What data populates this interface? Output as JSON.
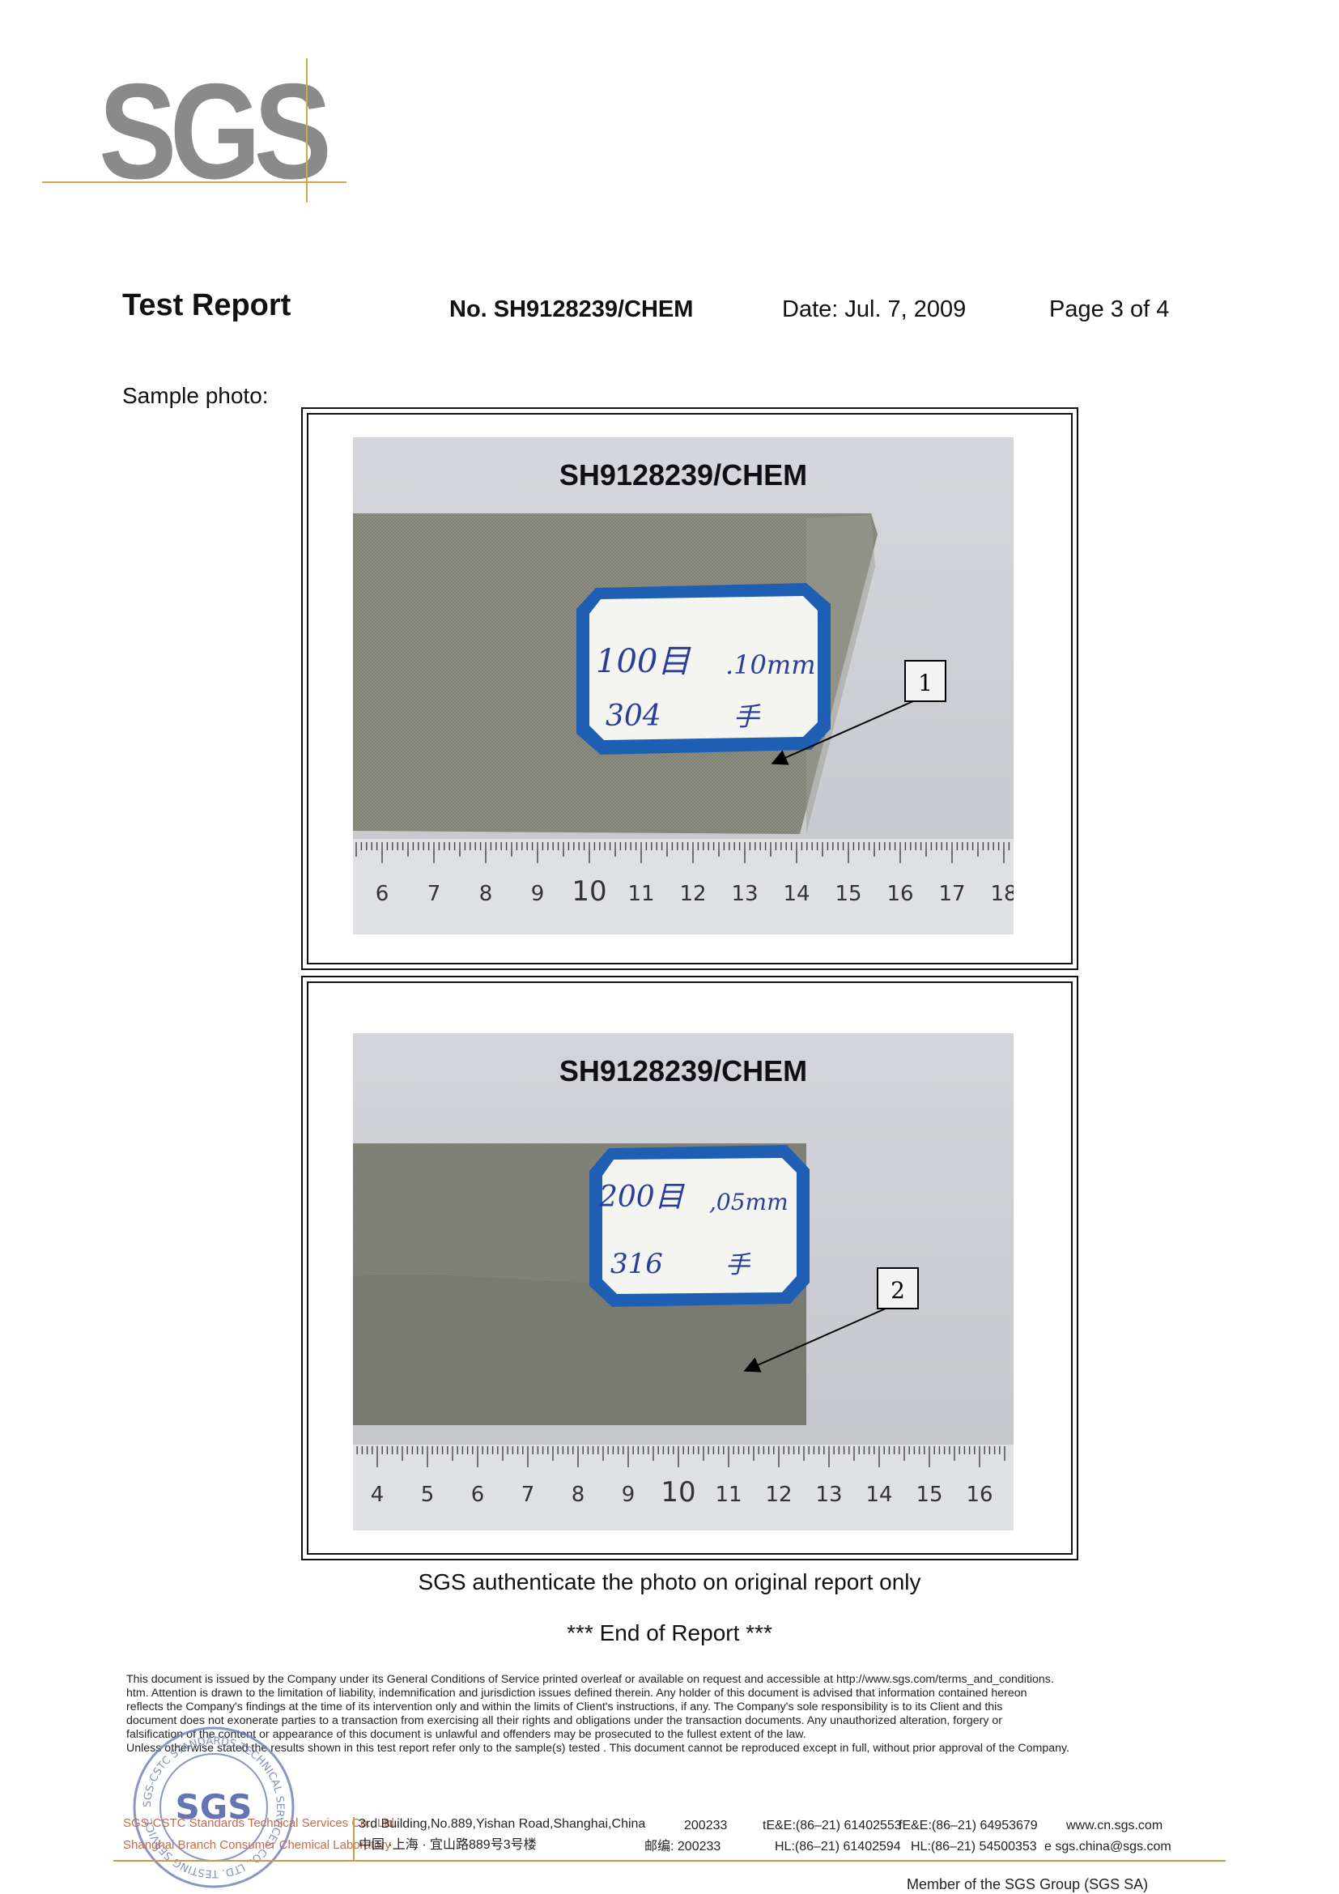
{
  "logo": {
    "text": "SGS",
    "color": "#8a8a8a",
    "accent": "#d4a84a"
  },
  "header": {
    "title": "Test Report",
    "report_no": "No. SH9128239/CHEM",
    "date": "Date: Jul. 7, 2009",
    "page": "Page 3 of 4"
  },
  "sample_label": "Sample photo:",
  "photos": [
    {
      "id_text": "SH9128239/CHEM",
      "tag_line1_left": "100目",
      "tag_line1_right": ".10mm",
      "tag_line2_left": "304",
      "tag_line2_right": "手",
      "callout": "1",
      "ruler_numbers": [
        "6",
        "7",
        "8",
        "9",
        "10",
        "11",
        "12",
        "13",
        "14",
        "15",
        "16",
        "17",
        "18"
      ]
    },
    {
      "id_text": "SH9128239/CHEM",
      "tag_line1_left": "200目",
      "tag_line1_right": ",05mm",
      "tag_line2_left": "316",
      "tag_line2_right": "手",
      "callout": "2",
      "ruler_numbers": [
        "4",
        "5",
        "6",
        "7",
        "8",
        "9",
        "10",
        "11",
        "12",
        "13",
        "14",
        "15",
        "16"
      ]
    }
  ],
  "caption": "SGS authenticate the photo on original report only",
  "end_text": "*** End of Report ***",
  "footer": {
    "disclaimer_lines": [
      "This document is issued by the Company under its General Conditions of Service printed overleaf or available on request and accessible at http://www.sgs.com/terms_and_conditions.",
      "htm. Attention is drawn to the limitation of liability, indemnification and jurisdiction issues defined therein. Any holder of this document is advised that information contained hereon",
      "reflects the Company's findings at the time of its intervention only and within the limits of Client's instructions, if any. The Company's sole responsibility is to its Client and this",
      "document does not exonerate parties to a transaction from exercising all their rights and obligations under the transaction documents. Any unauthorized alteration, forgery or",
      "falsification of the content or appearance of this document is unlawful and offenders may be prosecuted to the fullest extent of the law.",
      "Unless otherwise stated the results shown in this test report refer only to the sample(s) tested . This document cannot be reproduced except in full, without prior approval of the Company."
    ],
    "stamp_center": "SGS",
    "stamp_ring": "SGS-CSTC STANDARDS TECHNICAL SERVICES CO., LTD. TESTING SERVICE",
    "company_line1": "SGS-CSTC Standards Technical Services Co., Ltd.",
    "company_line2": "Shanghai Branch Consumer Chemical Laboratory",
    "address_en": "3rd Building,No.889,Yishan Road,Shanghai,China",
    "address_cn": "中国 ·上海 · 宜山路889号3号楼",
    "postcode_en": "200233",
    "postcode_cn": "邮编: 200233",
    "tel": "tE&E:(86–21) 61402553",
    "hl1": "HL:(86–21) 61402594",
    "fax": "fE&E:(86–21) 64953679",
    "hl2": "HL:(86–21) 54500353",
    "website": "www.cn.sgs.com",
    "email": "e  sgs.china@sgs.com",
    "member": "Member of the SGS Group (SGS SA)"
  }
}
